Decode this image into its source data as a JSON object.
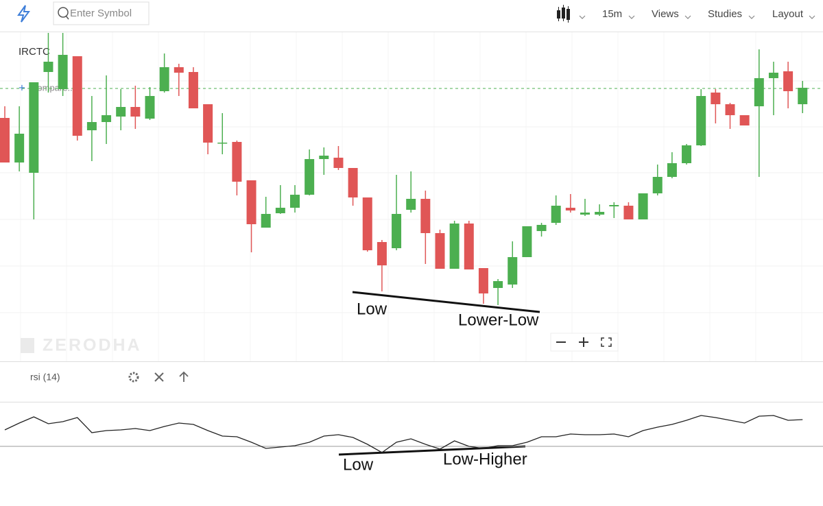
{
  "toolbar": {
    "search_placeholder": "Enter Symbol",
    "interval": "15m",
    "menus": [
      "Views",
      "Studies",
      "Layout"
    ]
  },
  "watermark": "ZERODHA",
  "compare": "Compare...",
  "chart_data": [
    {
      "type": "candlestick",
      "title": "IRCTC",
      "ylim": [
        0,
        480
      ],
      "up_color": "#4caf50",
      "down_color": "#e05656",
      "reference_line": 396,
      "annotations": [
        "Low",
        "Lower-Low"
      ],
      "ohlc": [
        [
          353,
          370,
          288,
          288
        ],
        [
          288,
          370,
          275,
          330
        ],
        [
          273,
          405,
          205,
          405
        ],
        [
          420,
          477,
          390,
          435
        ],
        [
          395,
          477,
          385,
          445
        ],
        [
          443,
          443,
          320,
          327
        ],
        [
          335,
          385,
          290,
          347
        ],
        [
          347,
          415,
          315,
          357
        ],
        [
          355,
          395,
          335,
          369
        ],
        [
          369,
          400,
          337,
          355
        ],
        [
          352,
          398,
          350,
          385
        ],
        [
          392,
          447,
          390,
          427
        ],
        [
          427,
          432,
          385,
          419
        ],
        [
          420,
          427,
          367,
          367
        ],
        [
          373,
          373,
          300,
          317
        ],
        [
          317,
          360,
          300,
          317
        ],
        [
          318,
          320,
          240,
          260
        ],
        [
          262,
          262,
          157,
          198
        ],
        [
          193,
          238,
          193,
          213
        ],
        [
          214,
          255,
          213,
          222
        ],
        [
          222,
          255,
          215,
          241
        ],
        [
          241,
          307,
          240,
          293
        ],
        [
          293,
          310,
          270,
          298
        ],
        [
          295,
          312,
          277,
          280
        ],
        [
          280,
          280,
          225,
          237
        ],
        [
          237,
          237,
          158,
          160
        ],
        [
          172,
          175,
          100,
          138
        ],
        [
          163,
          270,
          160,
          213
        ],
        [
          219,
          275,
          215,
          235
        ],
        [
          235,
          247,
          140,
          185
        ],
        [
          185,
          190,
          133,
          133
        ],
        [
          133,
          203,
          133,
          199
        ],
        [
          199,
          203,
          132,
          132
        ],
        [
          134,
          134,
          82,
          97
        ],
        [
          105,
          118,
          80,
          115
        ],
        [
          110,
          173,
          105,
          150
        ],
        [
          150,
          195,
          150,
          195
        ],
        [
          188,
          200,
          180,
          197
        ],
        [
          200,
          240,
          197,
          225
        ],
        [
          222,
          242,
          215,
          218
        ],
        [
          212,
          235,
          210,
          215
        ],
        [
          212,
          227,
          210,
          216
        ],
        [
          224,
          230,
          207,
          226
        ],
        [
          225,
          230,
          205,
          205
        ],
        [
          205,
          243,
          205,
          243
        ],
        [
          243,
          285,
          240,
          267
        ],
        [
          267,
          303,
          265,
          287
        ],
        [
          287,
          315,
          285,
          313
        ],
        [
          313,
          395,
          312,
          385
        ],
        [
          390,
          395,
          345,
          373
        ],
        [
          373,
          375,
          337,
          357
        ],
        [
          357,
          357,
          342,
          342
        ],
        [
          370,
          453,
          267,
          411
        ],
        [
          411,
          435,
          357,
          419
        ],
        [
          421,
          435,
          367,
          392
        ],
        [
          373,
          407,
          360,
          397
        ]
      ]
    },
    {
      "type": "line",
      "title": "rsi (14)",
      "ylim": [
        0,
        140
      ],
      "color": "#222222",
      "level": 79,
      "annotations": [
        "Low",
        "Low-Higher"
      ],
      "values": [
        103,
        113,
        122,
        112,
        115,
        121,
        99,
        102,
        103,
        105,
        102,
        108,
        113,
        111,
        102,
        94,
        93,
        85,
        76,
        78,
        80,
        85,
        94,
        96,
        92,
        82,
        70,
        85,
        90,
        82,
        75,
        87,
        79,
        76,
        80,
        80,
        85,
        93,
        93,
        97,
        96,
        96,
        97,
        93,
        102,
        107,
        111,
        117,
        124,
        121,
        117,
        113,
        123,
        124,
        117,
        118
      ]
    }
  ]
}
